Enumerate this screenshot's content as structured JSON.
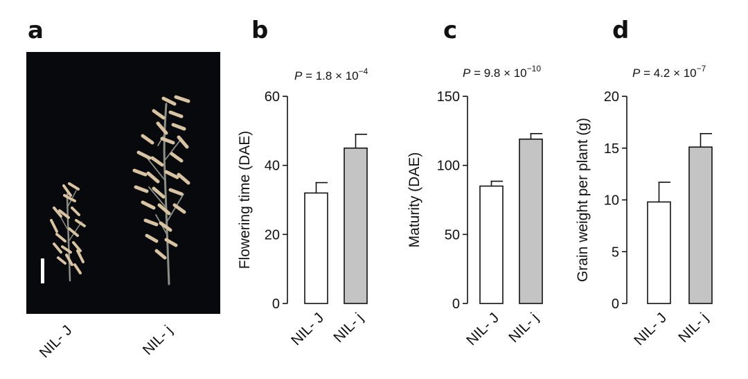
{
  "panels": {
    "a": "a",
    "b": "b",
    "c": "c",
    "d": "d"
  },
  "photo": {
    "labels": [
      "NIL- J",
      "NIL- j"
    ],
    "background": "#07090c",
    "panicle_color": "#d8c4a3",
    "stem_color": "#8d8f86",
    "scale_bar_color": "#ffffff"
  },
  "chart_data": [
    {
      "type": "bar",
      "panel": "b",
      "categories": [
        "NIL- J",
        "NIL- j"
      ],
      "values": [
        32,
        45
      ],
      "errors": [
        3,
        4
      ],
      "ylabel": "Flowering time (DAE)",
      "ylim": [
        0,
        60
      ],
      "yticks": [
        0,
        20,
        40,
        60
      ],
      "p_prefix": "P",
      "p_text": " = 1.8 × 10",
      "p_exp": "−4",
      "colors": [
        "#ffffff",
        "#c4c4c4"
      ]
    },
    {
      "type": "bar",
      "panel": "c",
      "categories": [
        "NIL- J",
        "NIL- j"
      ],
      "values": [
        85,
        119
      ],
      "errors": [
        3.5,
        4
      ],
      "ylabel": "Maturity (DAE)",
      "ylim": [
        0,
        150
      ],
      "yticks": [
        0,
        50,
        100,
        150
      ],
      "p_prefix": "P",
      "p_text": " = 9.8 × 10",
      "p_exp": "−10",
      "colors": [
        "#ffffff",
        "#c4c4c4"
      ]
    },
    {
      "type": "bar",
      "panel": "d",
      "categories": [
        "NIL- J",
        "NIL- j"
      ],
      "values": [
        9.8,
        15.1
      ],
      "errors": [
        1.9,
        1.3
      ],
      "ylabel": "Grain weight per plant (g)",
      "ylim": [
        0,
        20
      ],
      "yticks": [
        0,
        5,
        10,
        15,
        20
      ],
      "p_prefix": "P",
      "p_text": " = 4.2 × 10",
      "p_exp": "−7",
      "colors": [
        "#ffffff",
        "#c4c4c4"
      ]
    }
  ]
}
